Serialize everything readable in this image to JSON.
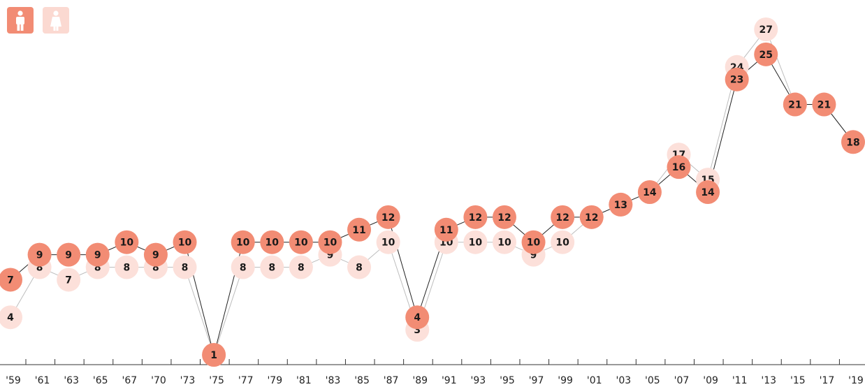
{
  "toggles": {
    "men": {
      "icon": "man-icon",
      "color": "#F28C74"
    },
    "women": {
      "icon": "woman-icon",
      "color": "#FBD9D1"
    }
  },
  "colors": {
    "men_marker": "#F28C74",
    "women_marker": "#FCE0DA",
    "men_line": "#222222",
    "women_line": "#bdbdbd",
    "axis": "#333333"
  },
  "chart_data": {
    "type": "line",
    "x_ticks": [
      "'59",
      "'61",
      "'63",
      "'65",
      "'67",
      "'70",
      "'73",
      "'75",
      "'77",
      "'79",
      "'81",
      "'83",
      "'85",
      "'87",
      "'89",
      "'91",
      "'93",
      "'95",
      "'97",
      "'99",
      "'01",
      "'03",
      "'05",
      "'07",
      "'09",
      "'11",
      "'13",
      "'15",
      "'17",
      "'19"
    ],
    "series": [
      {
        "key": "men",
        "values": [
          7,
          9,
          9,
          9,
          10,
          9,
          10,
          1,
          10,
          10,
          10,
          10,
          11,
          12,
          4,
          11,
          12,
          12,
          10,
          12,
          12,
          13,
          14,
          16,
          14,
          23,
          25,
          21,
          21,
          18
        ]
      },
      {
        "key": "women",
        "values": [
          4,
          8,
          7,
          8,
          8,
          8,
          8,
          1,
          8,
          8,
          8,
          9,
          8,
          10,
          3,
          10,
          10,
          10,
          9,
          10,
          12,
          13,
          14,
          17,
          15,
          24,
          27,
          21,
          21,
          18
        ]
      }
    ],
    "ylim": [
      1,
      27
    ],
    "grid": false
  }
}
